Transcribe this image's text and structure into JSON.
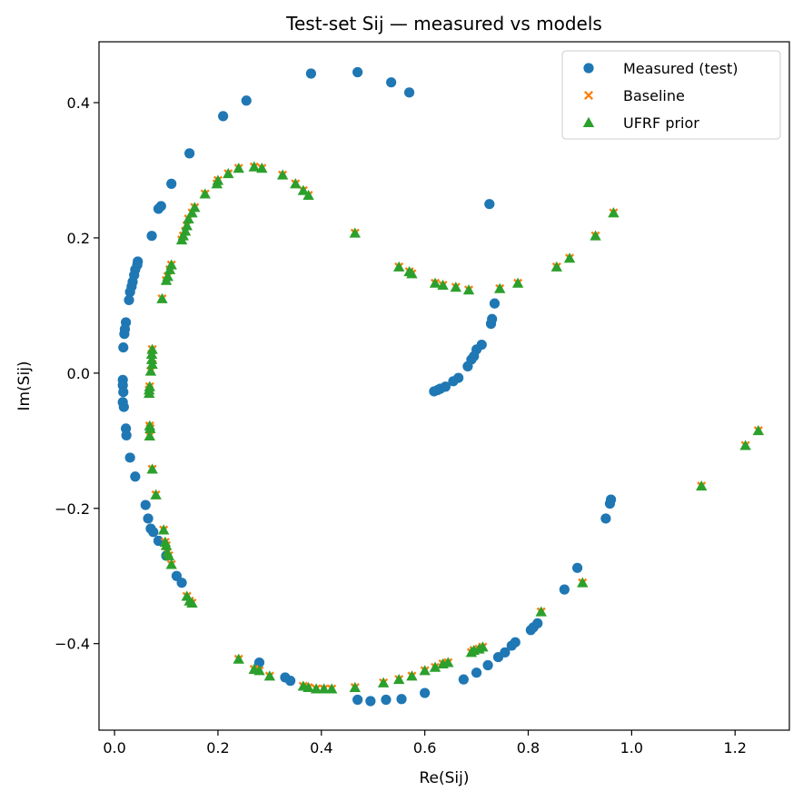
{
  "chart_data": {
    "type": "scatter",
    "title": "Test-set Sij — measured vs models",
    "xlabel": "Re(Sij)",
    "ylabel": "Im(Sij)",
    "xlim": [
      -0.03,
      1.305
    ],
    "ylim": [
      -0.528,
      0.49
    ],
    "xticks": [
      0.0,
      0.2,
      0.4,
      0.6,
      0.8,
      1.0,
      1.2
    ],
    "xtick_labels": [
      "0.0",
      "0.2",
      "0.4",
      "0.6",
      "0.8",
      "1.0",
      "1.2"
    ],
    "yticks": [
      0.4,
      0.2,
      0.0,
      -0.2,
      -0.4
    ],
    "ytick_labels": [
      "0.4",
      "0.2",
      "0.0",
      "−0.2",
      "−0.4"
    ],
    "grid": false,
    "legend_position": "top-right",
    "series": [
      {
        "name": "Measured (test)",
        "marker": "circle",
        "color": "#1f77b4",
        "points": [
          [
            0.38,
            0.443
          ],
          [
            0.47,
            0.445
          ],
          [
            0.535,
            0.43
          ],
          [
            0.57,
            0.415
          ],
          [
            0.255,
            0.403
          ],
          [
            0.21,
            0.38
          ],
          [
            0.145,
            0.325
          ],
          [
            0.11,
            0.28
          ],
          [
            0.09,
            0.247
          ],
          [
            0.085,
            0.243
          ],
          [
            0.072,
            0.203
          ],
          [
            0.045,
            0.165
          ],
          [
            0.044,
            0.16
          ],
          [
            0.04,
            0.153
          ],
          [
            0.038,
            0.145
          ],
          [
            0.035,
            0.135
          ],
          [
            0.033,
            0.128
          ],
          [
            0.03,
            0.12
          ],
          [
            0.028,
            0.108
          ],
          [
            0.022,
            0.075
          ],
          [
            0.02,
            0.065
          ],
          [
            0.019,
            0.058
          ],
          [
            0.017,
            0.038
          ],
          [
            0.016,
            -0.01
          ],
          [
            0.016,
            -0.018
          ],
          [
            0.017,
            -0.028
          ],
          [
            0.016,
            -0.043
          ],
          [
            0.018,
            -0.05
          ],
          [
            0.022,
            -0.082
          ],
          [
            0.023,
            -0.092
          ],
          [
            0.03,
            -0.125
          ],
          [
            0.04,
            -0.153
          ],
          [
            0.06,
            -0.195
          ],
          [
            0.065,
            -0.215
          ],
          [
            0.07,
            -0.23
          ],
          [
            0.075,
            -0.235
          ],
          [
            0.085,
            -0.248
          ],
          [
            0.1,
            -0.27
          ],
          [
            0.12,
            -0.3
          ],
          [
            0.13,
            -0.31
          ],
          [
            0.28,
            -0.428
          ],
          [
            0.33,
            -0.45
          ],
          [
            0.34,
            -0.455
          ],
          [
            0.47,
            -0.483
          ],
          [
            0.495,
            -0.485
          ],
          [
            0.525,
            -0.483
          ],
          [
            0.555,
            -0.482
          ],
          [
            0.6,
            -0.473
          ],
          [
            0.675,
            -0.453
          ],
          [
            0.7,
            -0.443
          ],
          [
            0.722,
            -0.432
          ],
          [
            0.742,
            -0.42
          ],
          [
            0.755,
            -0.413
          ],
          [
            0.768,
            -0.403
          ],
          [
            0.775,
            -0.398
          ],
          [
            0.805,
            -0.38
          ],
          [
            0.81,
            -0.376
          ],
          [
            0.818,
            -0.37
          ],
          [
            0.87,
            -0.32
          ],
          [
            0.895,
            -0.288
          ],
          [
            0.95,
            -0.215
          ],
          [
            0.958,
            -0.193
          ],
          [
            0.96,
            -0.187
          ],
          [
            0.725,
            0.25
          ],
          [
            0.735,
            0.103
          ],
          [
            0.73,
            0.08
          ],
          [
            0.728,
            0.073
          ],
          [
            0.71,
            0.042
          ],
          [
            0.7,
            0.035
          ],
          [
            0.695,
            0.025
          ],
          [
            0.69,
            0.02
          ],
          [
            0.683,
            0.01
          ],
          [
            0.665,
            -0.007
          ],
          [
            0.655,
            -0.012
          ],
          [
            0.64,
            -0.02
          ],
          [
            0.63,
            -0.023
          ],
          [
            0.625,
            -0.025
          ],
          [
            0.618,
            -0.027
          ]
        ]
      },
      {
        "name": "Baseline",
        "marker": "x",
        "color": "#ff7f0e",
        "points": [
          [
            0.27,
            0.305
          ],
          [
            0.285,
            0.303
          ],
          [
            0.24,
            0.303
          ],
          [
            0.22,
            0.295
          ],
          [
            0.2,
            0.285
          ],
          [
            0.198,
            0.28
          ],
          [
            0.175,
            0.265
          ],
          [
            0.155,
            0.245
          ],
          [
            0.15,
            0.237
          ],
          [
            0.143,
            0.228
          ],
          [
            0.14,
            0.218
          ],
          [
            0.137,
            0.21
          ],
          [
            0.133,
            0.203
          ],
          [
            0.13,
            0.197
          ],
          [
            0.11,
            0.16
          ],
          [
            0.107,
            0.153
          ],
          [
            0.103,
            0.143
          ],
          [
            0.1,
            0.137
          ],
          [
            0.092,
            0.11
          ],
          [
            0.325,
            0.293
          ],
          [
            0.35,
            0.28
          ],
          [
            0.365,
            0.27
          ],
          [
            0.375,
            0.263
          ],
          [
            0.465,
            0.207
          ],
          [
            0.55,
            0.157
          ],
          [
            0.57,
            0.15
          ],
          [
            0.575,
            0.147
          ],
          [
            0.62,
            0.133
          ],
          [
            0.635,
            0.13
          ],
          [
            0.66,
            0.127
          ],
          [
            0.685,
            0.123
          ],
          [
            0.745,
            0.125
          ],
          [
            0.78,
            0.133
          ],
          [
            0.855,
            0.157
          ],
          [
            0.88,
            0.17
          ],
          [
            0.93,
            0.203
          ],
          [
            0.965,
            0.237
          ],
          [
            0.073,
            0.035
          ],
          [
            0.072,
            0.028
          ],
          [
            0.072,
            0.02
          ],
          [
            0.073,
            0.013
          ],
          [
            0.07,
            0.003
          ],
          [
            0.068,
            -0.02
          ],
          [
            0.067,
            -0.025
          ],
          [
            0.067,
            -0.03
          ],
          [
            0.068,
            -0.078
          ],
          [
            0.069,
            -0.082
          ],
          [
            0.068,
            -0.093
          ],
          [
            0.073,
            -0.142
          ],
          [
            0.08,
            -0.18
          ],
          [
            0.095,
            -0.232
          ],
          [
            0.098,
            -0.25
          ],
          [
            0.1,
            -0.255
          ],
          [
            0.102,
            -0.265
          ],
          [
            0.105,
            -0.27
          ],
          [
            0.11,
            -0.283
          ],
          [
            0.14,
            -0.33
          ],
          [
            0.145,
            -0.337
          ],
          [
            0.15,
            -0.34
          ],
          [
            0.24,
            -0.423
          ],
          [
            0.27,
            -0.438
          ],
          [
            0.28,
            -0.44
          ],
          [
            0.3,
            -0.448
          ],
          [
            0.365,
            -0.463
          ],
          [
            0.375,
            -0.465
          ],
          [
            0.39,
            -0.467
          ],
          [
            0.405,
            -0.467
          ],
          [
            0.42,
            -0.467
          ],
          [
            0.465,
            -0.465
          ],
          [
            0.52,
            -0.458
          ],
          [
            0.55,
            -0.453
          ],
          [
            0.575,
            -0.448
          ],
          [
            0.6,
            -0.44
          ],
          [
            0.62,
            -0.435
          ],
          [
            0.635,
            -0.43
          ],
          [
            0.645,
            -0.428
          ],
          [
            0.69,
            -0.413
          ],
          [
            0.695,
            -0.41
          ],
          [
            0.705,
            -0.408
          ],
          [
            0.712,
            -0.405
          ],
          [
            0.825,
            -0.353
          ],
          [
            0.905,
            -0.31
          ],
          [
            1.135,
            -0.167
          ],
          [
            1.22,
            -0.107
          ],
          [
            1.245,
            -0.085
          ]
        ]
      },
      {
        "name": "UFRF prior",
        "marker": "triangle",
        "color": "#2ca02c",
        "points": [
          [
            0.27,
            0.305
          ],
          [
            0.285,
            0.303
          ],
          [
            0.24,
            0.303
          ],
          [
            0.22,
            0.295
          ],
          [
            0.2,
            0.285
          ],
          [
            0.198,
            0.28
          ],
          [
            0.175,
            0.265
          ],
          [
            0.155,
            0.245
          ],
          [
            0.15,
            0.237
          ],
          [
            0.143,
            0.228
          ],
          [
            0.14,
            0.218
          ],
          [
            0.137,
            0.21
          ],
          [
            0.133,
            0.203
          ],
          [
            0.13,
            0.197
          ],
          [
            0.11,
            0.16
          ],
          [
            0.107,
            0.153
          ],
          [
            0.103,
            0.143
          ],
          [
            0.1,
            0.137
          ],
          [
            0.092,
            0.11
          ],
          [
            0.325,
            0.293
          ],
          [
            0.35,
            0.28
          ],
          [
            0.365,
            0.27
          ],
          [
            0.375,
            0.263
          ],
          [
            0.465,
            0.207
          ],
          [
            0.55,
            0.157
          ],
          [
            0.57,
            0.15
          ],
          [
            0.575,
            0.147
          ],
          [
            0.62,
            0.133
          ],
          [
            0.635,
            0.13
          ],
          [
            0.66,
            0.127
          ],
          [
            0.685,
            0.123
          ],
          [
            0.745,
            0.125
          ],
          [
            0.78,
            0.133
          ],
          [
            0.855,
            0.157
          ],
          [
            0.88,
            0.17
          ],
          [
            0.93,
            0.203
          ],
          [
            0.965,
            0.237
          ],
          [
            0.073,
            0.035
          ],
          [
            0.072,
            0.028
          ],
          [
            0.072,
            0.02
          ],
          [
            0.073,
            0.013
          ],
          [
            0.07,
            0.003
          ],
          [
            0.068,
            -0.02
          ],
          [
            0.067,
            -0.025
          ],
          [
            0.067,
            -0.03
          ],
          [
            0.068,
            -0.078
          ],
          [
            0.069,
            -0.082
          ],
          [
            0.068,
            -0.093
          ],
          [
            0.073,
            -0.142
          ],
          [
            0.08,
            -0.18
          ],
          [
            0.095,
            -0.232
          ],
          [
            0.098,
            -0.25
          ],
          [
            0.1,
            -0.255
          ],
          [
            0.102,
            -0.265
          ],
          [
            0.105,
            -0.27
          ],
          [
            0.11,
            -0.283
          ],
          [
            0.14,
            -0.33
          ],
          [
            0.145,
            -0.337
          ],
          [
            0.15,
            -0.34
          ],
          [
            0.24,
            -0.423
          ],
          [
            0.27,
            -0.438
          ],
          [
            0.28,
            -0.44
          ],
          [
            0.3,
            -0.448
          ],
          [
            0.365,
            -0.463
          ],
          [
            0.375,
            -0.465
          ],
          [
            0.39,
            -0.467
          ],
          [
            0.405,
            -0.467
          ],
          [
            0.42,
            -0.467
          ],
          [
            0.465,
            -0.465
          ],
          [
            0.52,
            -0.458
          ],
          [
            0.55,
            -0.453
          ],
          [
            0.575,
            -0.448
          ],
          [
            0.6,
            -0.44
          ],
          [
            0.62,
            -0.435
          ],
          [
            0.635,
            -0.43
          ],
          [
            0.645,
            -0.428
          ],
          [
            0.69,
            -0.413
          ],
          [
            0.695,
            -0.41
          ],
          [
            0.705,
            -0.408
          ],
          [
            0.712,
            -0.405
          ],
          [
            0.825,
            -0.353
          ],
          [
            0.905,
            -0.31
          ],
          [
            1.135,
            -0.167
          ],
          [
            1.22,
            -0.107
          ],
          [
            1.245,
            -0.085
          ]
        ]
      }
    ]
  }
}
